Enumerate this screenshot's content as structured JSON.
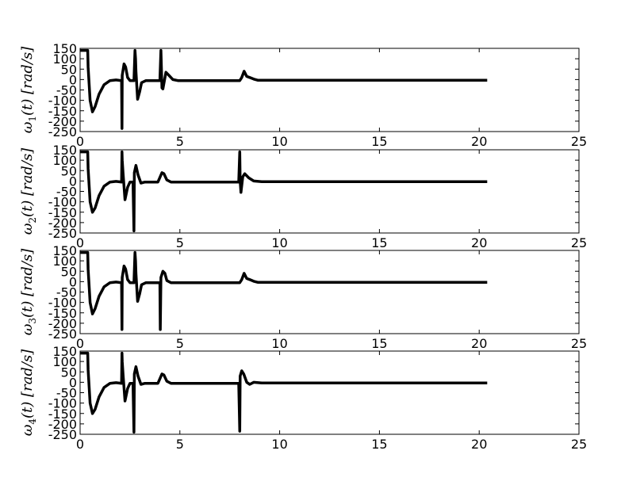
{
  "chart_data": [
    {
      "type": "line",
      "ylabel_var": "ω",
      "ylabel_sub": "1",
      "ylabel_rest": "(t)  [rad/s]",
      "xlim": [
        0,
        25
      ],
      "ylim": [
        -250,
        150
      ],
      "xticks": [
        0,
        5,
        10,
        15,
        20,
        25
      ],
      "yticks": [
        150,
        100,
        50,
        0,
        -50,
        -100,
        -150,
        -200,
        -250
      ],
      "x": [
        0,
        0.38,
        0.4,
        0.5,
        0.62,
        0.75,
        0.95,
        1.2,
        1.5,
        1.8,
        2.08,
        2.1,
        2.11,
        2.2,
        2.28,
        2.38,
        2.5,
        2.65,
        2.7,
        2.75,
        2.78,
        2.8,
        2.88,
        2.98,
        3.08,
        3.3,
        3.7,
        4.0,
        4.05,
        4.08,
        4.1,
        4.15,
        4.3,
        4.45,
        4.65,
        4.9,
        5.2,
        8.0,
        8.1,
        8.22,
        8.35,
        8.5,
        8.7,
        8.9,
        9.2,
        20.4
      ],
      "y": [
        140,
        140,
        60,
        -100,
        -155,
        -130,
        -70,
        -25,
        -5,
        -2,
        -5,
        -235,
        20,
        75,
        60,
        10,
        -5,
        -5,
        -5,
        140,
        100,
        40,
        -95,
        -60,
        -15,
        -5,
        -5,
        -5,
        140,
        30,
        -40,
        -45,
        35,
        20,
        0,
        -5,
        -5,
        -5,
        10,
        40,
        15,
        10,
        2,
        -3,
        -3,
        -3
      ]
    },
    {
      "type": "line",
      "ylabel_var": "ω",
      "ylabel_sub": "2",
      "ylabel_rest": "(t)  [rad/s]",
      "xlim": [
        0,
        25
      ],
      "ylim": [
        -250,
        150
      ],
      "xticks": [
        0,
        5,
        10,
        15,
        20,
        25
      ],
      "yticks": [
        150,
        100,
        50,
        0,
        -50,
        -100,
        -150,
        -200,
        -250
      ],
      "x": [
        0,
        0.38,
        0.4,
        0.5,
        0.62,
        0.75,
        0.95,
        1.2,
        1.5,
        1.8,
        2.08,
        2.1,
        2.11,
        2.15,
        2.25,
        2.38,
        2.5,
        2.65,
        2.7,
        2.72,
        2.8,
        2.9,
        3.05,
        3.25,
        3.5,
        3.9,
        4.1,
        4.2,
        4.35,
        4.55,
        4.8,
        5.1,
        7.95,
        8.0,
        8.02,
        8.06,
        8.15,
        8.25,
        8.45,
        8.7,
        9.1,
        20.4
      ],
      "y": [
        140,
        140,
        60,
        -100,
        -150,
        -130,
        -70,
        -25,
        -5,
        -2,
        -5,
        140,
        100,
        40,
        -90,
        -30,
        -5,
        -5,
        -240,
        40,
        75,
        30,
        -10,
        -5,
        -5,
        -5,
        40,
        35,
        5,
        -5,
        -5,
        -5,
        -5,
        140,
        0,
        -55,
        20,
        35,
        15,
        0,
        -3,
        -3
      ]
    },
    {
      "type": "line",
      "ylabel_var": "ω",
      "ylabel_sub": "3",
      "ylabel_rest": "(t)  [rad/s]",
      "xlim": [
        0,
        25
      ],
      "ylim": [
        -250,
        150
      ],
      "xticks": [
        0,
        5,
        10,
        15,
        20,
        25
      ],
      "yticks": [
        150,
        100,
        50,
        0,
        -50,
        -100,
        -150,
        -200,
        -250
      ],
      "x": [
        0,
        0.38,
        0.4,
        0.5,
        0.62,
        0.75,
        0.95,
        1.2,
        1.5,
        1.8,
        2.08,
        2.1,
        2.11,
        2.2,
        2.28,
        2.38,
        2.5,
        2.65,
        2.7,
        2.75,
        2.78,
        2.8,
        2.88,
        2.98,
        3.08,
        3.3,
        3.7,
        4.0,
        4.02,
        4.05,
        4.15,
        4.25,
        4.35,
        4.55,
        4.8,
        5.1,
        8.0,
        8.1,
        8.22,
        8.35,
        8.5,
        8.7,
        8.9,
        9.2,
        20.4
      ],
      "y": [
        140,
        140,
        60,
        -100,
        -155,
        -130,
        -70,
        -25,
        -5,
        -2,
        -5,
        -230,
        20,
        75,
        60,
        10,
        -5,
        -5,
        -5,
        140,
        100,
        40,
        -95,
        -60,
        -15,
        -5,
        -5,
        -5,
        -230,
        20,
        50,
        40,
        5,
        -5,
        -5,
        -5,
        -5,
        10,
        40,
        15,
        10,
        2,
        -3,
        -3,
        -3
      ]
    },
    {
      "type": "line",
      "ylabel_var": "ω",
      "ylabel_sub": "4",
      "ylabel_rest": "(t)  [rad/s]",
      "xlim": [
        0,
        25
      ],
      "ylim": [
        -250,
        150
      ],
      "xticks": [
        0,
        5,
        10,
        15,
        20,
        25
      ],
      "yticks": [
        150,
        100,
        50,
        0,
        -50,
        -100,
        -150,
        -200,
        -250
      ],
      "x": [
        0,
        0.38,
        0.4,
        0.5,
        0.62,
        0.75,
        0.95,
        1.2,
        1.5,
        1.8,
        2.08,
        2.1,
        2.11,
        2.15,
        2.25,
        2.38,
        2.5,
        2.65,
        2.7,
        2.72,
        2.8,
        2.9,
        3.05,
        3.25,
        3.5,
        3.9,
        4.1,
        4.2,
        4.35,
        4.55,
        4.8,
        5.1,
        7.95,
        8.0,
        8.02,
        8.1,
        8.2,
        8.35,
        8.5,
        8.7,
        9.1,
        20.4
      ],
      "y": [
        140,
        140,
        60,
        -100,
        -150,
        -130,
        -70,
        -25,
        -5,
        -2,
        -5,
        140,
        100,
        40,
        -90,
        -30,
        -5,
        -5,
        -240,
        40,
        75,
        30,
        -10,
        -5,
        -5,
        -5,
        40,
        35,
        5,
        -5,
        -5,
        -5,
        -5,
        -235,
        30,
        55,
        40,
        0,
        -10,
        0,
        -3,
        -3
      ]
    }
  ]
}
